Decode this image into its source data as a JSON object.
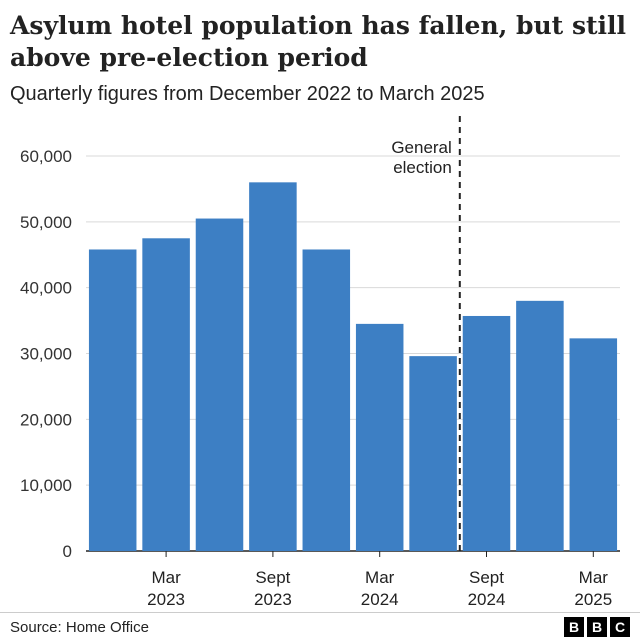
{
  "chart_data": {
    "type": "bar",
    "title": "Asylum hotel population has fallen, but still above pre-election period",
    "subtitle": "Quarterly figures from December 2022 to March 2025",
    "categories": [
      "Dec 2022",
      "Mar 2023",
      "Jun 2023",
      "Sept 2023",
      "Dec 2023",
      "Mar 2024",
      "Jun 2024",
      "Sept 2024",
      "Dec 2024",
      "Mar 2025"
    ],
    "values": [
      45800,
      47500,
      50500,
      56000,
      45800,
      34500,
      29600,
      35700,
      38000,
      32300
    ],
    "y_ticks": [
      "60,000",
      "50,000",
      "40,000",
      "30,000",
      "20,000",
      "10,000",
      "0"
    ],
    "x_tick_labels": [
      {
        "line1": "Mar",
        "line2": "2023"
      },
      {
        "line1": "Sept",
        "line2": "2023"
      },
      {
        "line1": "Mar",
        "line2": "2024"
      },
      {
        "line1": "Sept",
        "line2": "2024"
      },
      {
        "line1": "Mar",
        "line2": "2025"
      }
    ],
    "ylim": [
      0,
      60000
    ],
    "grid": true,
    "bar_color": "#3d7fc4",
    "annotation": {
      "line1": "General",
      "line2": "election"
    },
    "source": "Source: Home Office",
    "logo": [
      "B",
      "B",
      "C"
    ]
  }
}
